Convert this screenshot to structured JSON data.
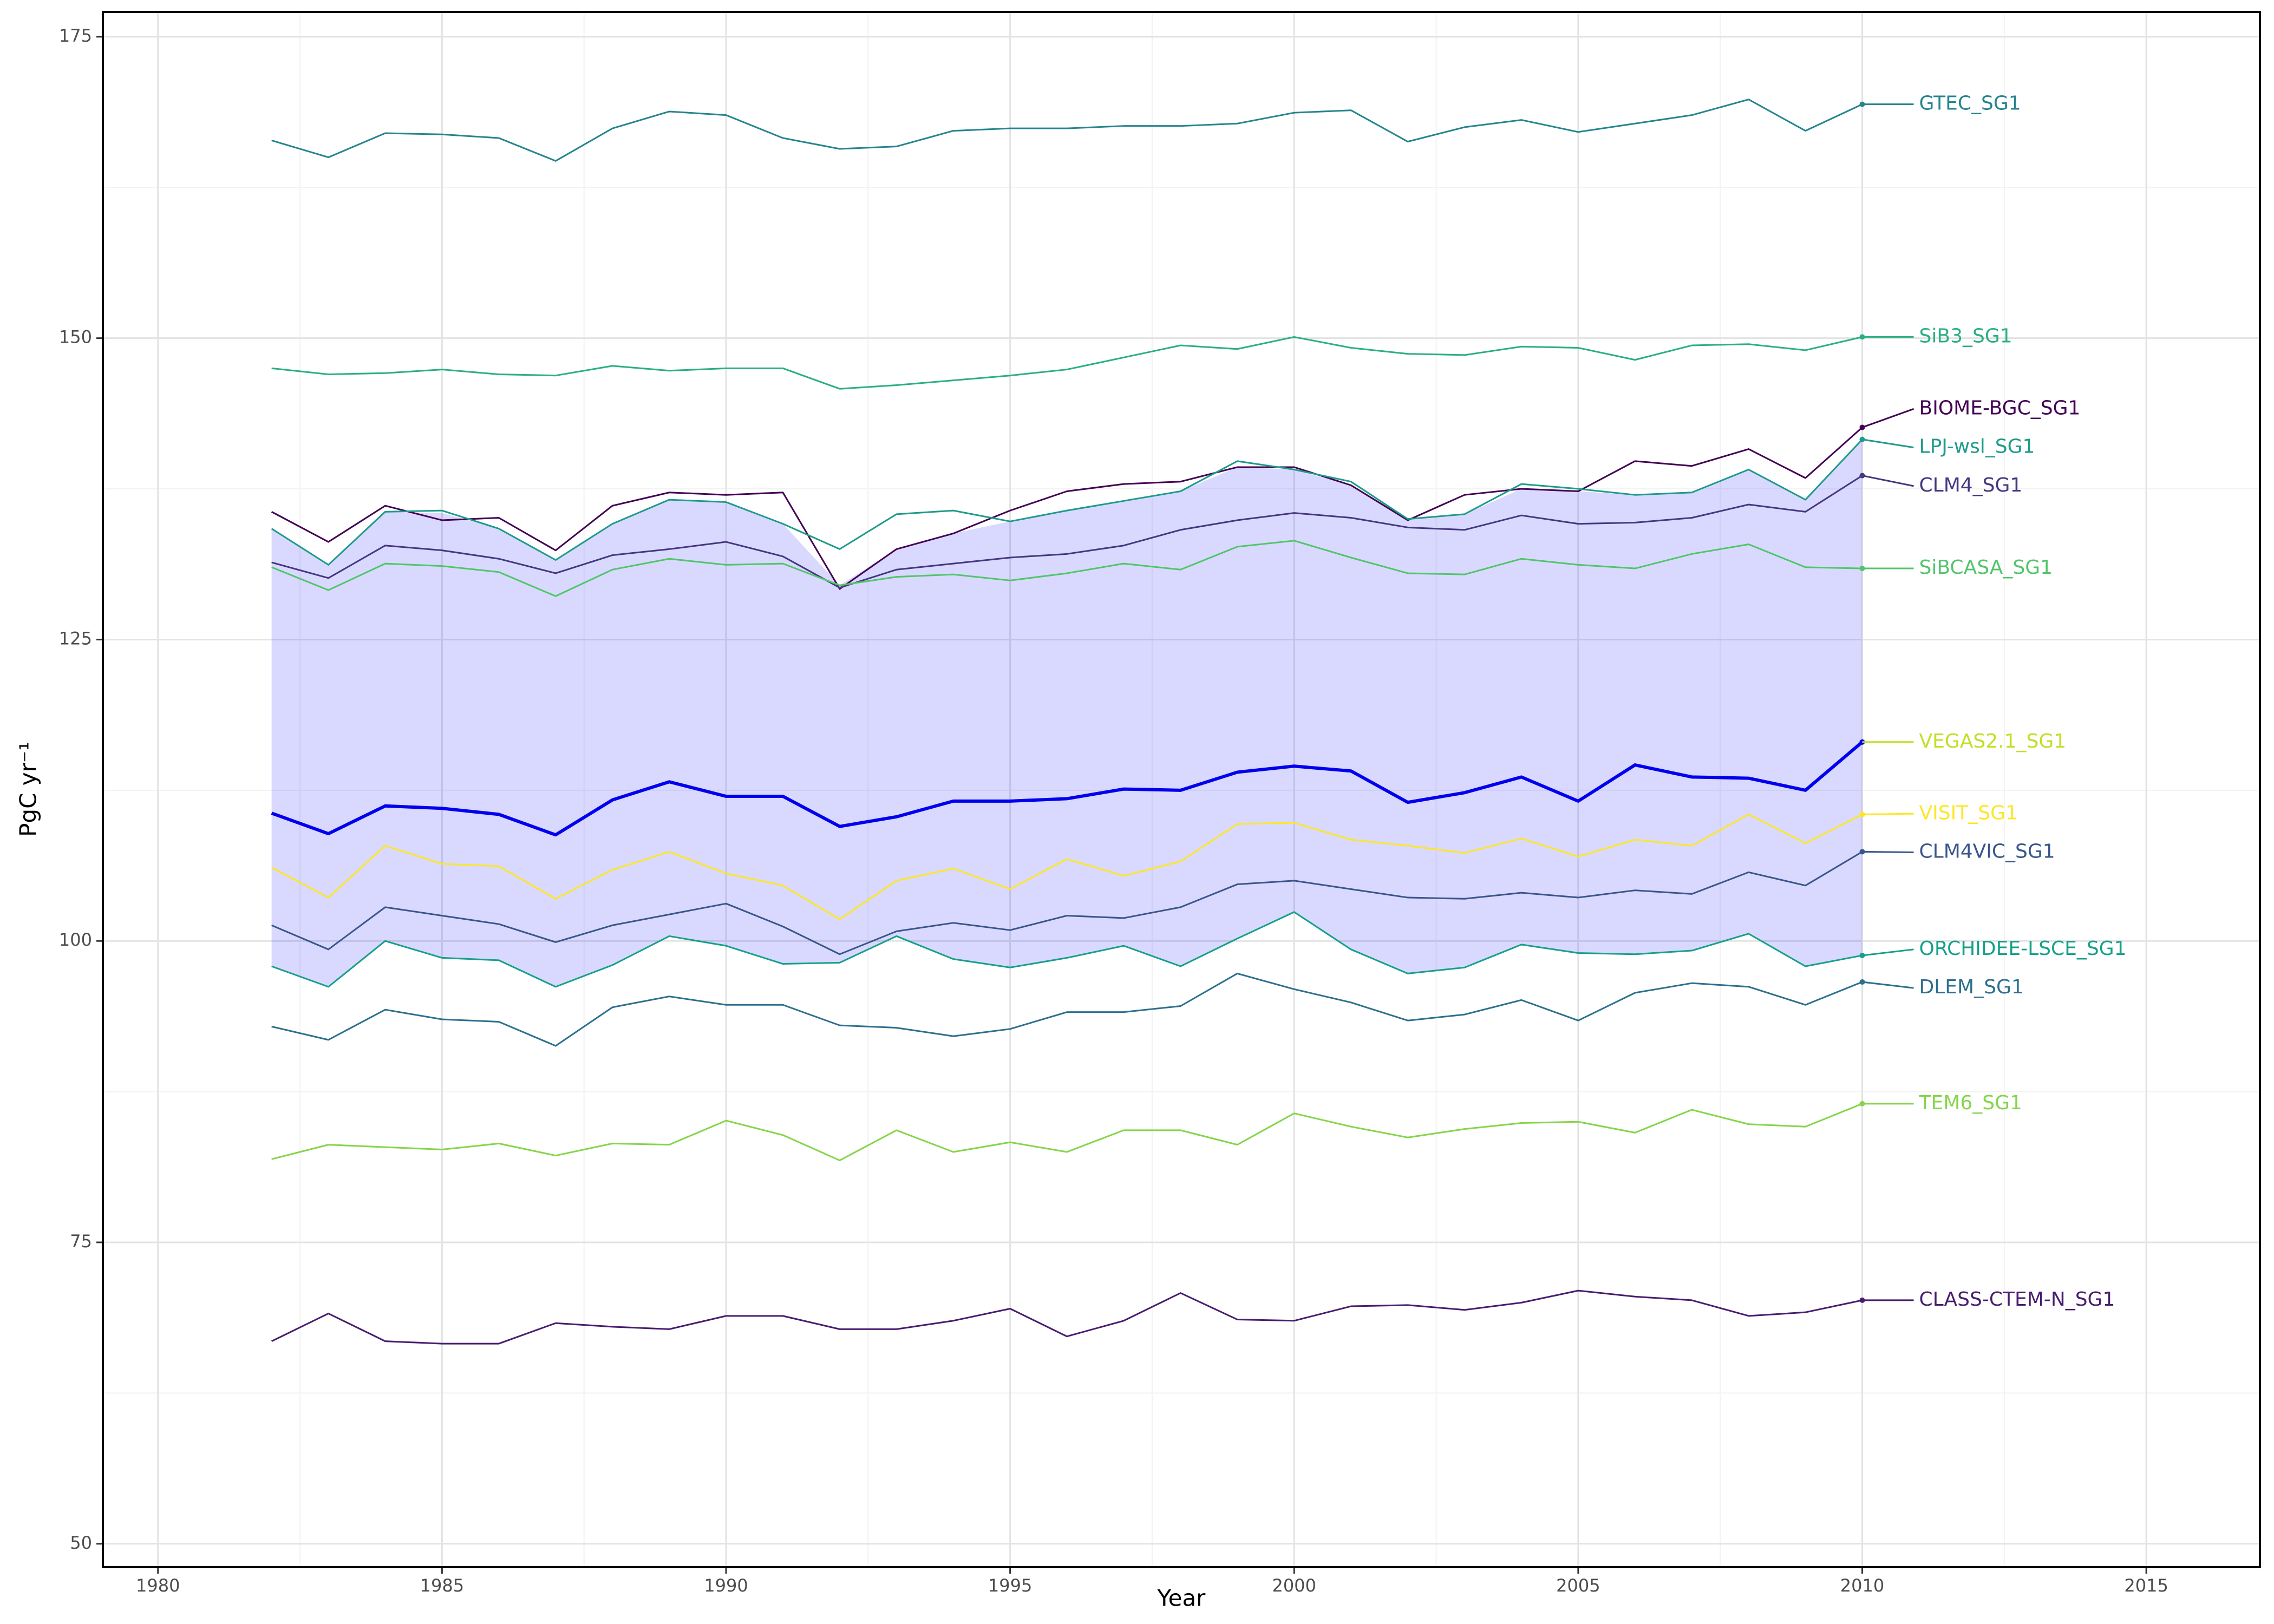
{
  "chart_data": {
    "type": "line",
    "x_label": "Year",
    "y_label": "PgC yr⁻¹",
    "xlim": [
      1979.03,
      2017
    ],
    "ylim": [
      48.06,
      177.06
    ],
    "xticks": [
      1980,
      1985,
      1990,
      1995,
      2000,
      2005,
      2010,
      2015
    ],
    "yticks": [
      50,
      75,
      100,
      125,
      150,
      175
    ],
    "xminor": [
      1982.5,
      1987.5,
      1992.5,
      1997.5,
      2002.5,
      2007.5,
      2012.5
    ],
    "yminor": [
      62.5,
      87.5,
      112.5,
      137.5,
      162.5
    ],
    "grid": true,
    "x": [
      1982,
      1983,
      1984,
      1985,
      1986,
      1987,
      1988,
      1989,
      1990,
      1991,
      1992,
      1993,
      1994,
      1995,
      1996,
      1997,
      1998,
      1999,
      2000,
      2001,
      2002,
      2003,
      2004,
      2005,
      2006,
      2007,
      2008,
      2009,
      2010
    ],
    "band": {
      "color": "#0000ff",
      "opacity": 0.15,
      "upper": [
        134.2,
        131.2,
        135.6,
        135.5,
        134.2,
        131.6,
        134.6,
        136.6,
        136.4,
        134.6,
        129.5,
        132.5,
        133.8,
        134.8,
        135.7,
        136.5,
        137.3,
        139.3,
        139.1,
        137.8,
        135.0,
        135.4,
        137.5,
        137.3,
        137.0,
        137.2,
        139.1,
        136.6,
        141.6
      ],
      "lower": [
        97.9,
        96.2,
        100.0,
        98.6,
        98.4,
        96.2,
        98.0,
        100.4,
        99.6,
        98.1,
        98.2,
        100.4,
        98.5,
        97.8,
        98.6,
        99.6,
        97.9,
        100.2,
        102.4,
        99.3,
        97.3,
        97.8,
        99.7,
        99.0,
        98.9,
        99.2,
        100.6,
        97.9,
        98.8
      ]
    },
    "series": [
      {
        "name": "GTEC_SG1",
        "color": "#25858e",
        "values": [
          166.4,
          165.0,
          167.0,
          166.9,
          166.6,
          164.7,
          167.4,
          168.8,
          168.5,
          166.6,
          165.7,
          165.9,
          167.2,
          167.4,
          167.4,
          167.6,
          167.6,
          167.8,
          168.7,
          168.9,
          166.3,
          167.5,
          168.1,
          167.1,
          167.8,
          168.5,
          169.8,
          167.2,
          169.4
        ]
      },
      {
        "name": "SiB3_SG1",
        "color": "#2ab07f",
        "values": [
          147.5,
          147.0,
          147.1,
          147.4,
          147.0,
          146.9,
          147.7,
          147.3,
          147.5,
          147.5,
          145.8,
          146.1,
          146.5,
          146.9,
          147.4,
          148.4,
          149.4,
          149.1,
          150.1,
          149.2,
          148.7,
          148.6,
          149.3,
          149.2,
          148.2,
          149.4,
          149.5,
          149.0,
          150.1
        ]
      },
      {
        "name": "BIOME-BGC_SG1",
        "color": "#440154",
        "values": [
          135.6,
          133.1,
          136.1,
          134.9,
          135.1,
          132.4,
          136.1,
          137.2,
          137.0,
          137.2,
          129.2,
          132.5,
          133.8,
          135.7,
          137.3,
          137.9,
          138.1,
          139.3,
          139.3,
          137.8,
          134.9,
          137.0,
          137.5,
          137.3,
          139.8,
          139.4,
          140.8,
          138.4,
          142.6
        ]
      },
      {
        "name": "LPJ-wsl_SG1",
        "color": "#1e9b8a",
        "values": [
          134.2,
          131.2,
          135.6,
          135.7,
          134.2,
          131.6,
          134.6,
          136.6,
          136.4,
          134.6,
          132.5,
          135.4,
          135.7,
          134.8,
          135.7,
          136.5,
          137.3,
          139.8,
          139.1,
          138.1,
          135.0,
          135.4,
          137.9,
          137.5,
          137.0,
          137.2,
          139.1,
          136.6,
          141.6
        ]
      },
      {
        "name": "CLM4_SG1",
        "color": "#453781",
        "values": [
          131.4,
          130.1,
          132.8,
          132.4,
          131.7,
          130.5,
          132.0,
          132.5,
          133.1,
          131.9,
          129.3,
          130.8,
          131.3,
          131.8,
          132.1,
          132.8,
          134.1,
          134.9,
          135.5,
          135.1,
          134.3,
          134.1,
          135.3,
          134.6,
          134.7,
          135.1,
          136.2,
          135.6,
          138.6
        ]
      },
      {
        "name": "SiBCASA_SG1",
        "color": "#51c56a",
        "values": [
          131.0,
          129.1,
          131.3,
          131.1,
          130.6,
          128.6,
          130.8,
          131.7,
          131.2,
          131.3,
          129.5,
          130.2,
          130.4,
          129.9,
          130.5,
          131.3,
          130.8,
          132.7,
          133.2,
          131.8,
          130.5,
          130.4,
          131.7,
          131.2,
          130.9,
          132.1,
          132.9,
          131.0,
          130.9
        ]
      },
      {
        "name": "VEGAS2.1_SG1",
        "color": "#0000ee",
        "label_color": "#c2df23",
        "line_width": 6,
        "values": [
          110.6,
          108.9,
          111.2,
          111.0,
          110.5,
          108.8,
          111.7,
          113.2,
          112.0,
          112.0,
          109.5,
          110.3,
          111.6,
          111.6,
          111.8,
          112.6,
          112.5,
          114.0,
          114.5,
          114.1,
          111.5,
          112.3,
          113.6,
          111.6,
          114.6,
          113.6,
          113.5,
          112.5,
          116.5
        ]
      },
      {
        "name": "VISIT_SG1",
        "color": "#fde725",
        "values": [
          106.1,
          103.6,
          107.9,
          106.4,
          106.2,
          103.5,
          105.9,
          107.4,
          105.6,
          104.6,
          101.8,
          105.0,
          106.0,
          104.3,
          106.8,
          105.4,
          106.6,
          109.7,
          109.8,
          108.4,
          107.9,
          107.3,
          108.5,
          107.0,
          108.4,
          107.9,
          110.5,
          108.1,
          110.5
        ]
      },
      {
        "name": "CLM4VIC_SG1",
        "color": "#39568c",
        "values": [
          101.3,
          99.3,
          102.8,
          102.1,
          101.4,
          99.9,
          101.3,
          102.2,
          103.1,
          101.2,
          98.9,
          100.8,
          101.5,
          100.9,
          102.1,
          101.9,
          102.8,
          104.7,
          105.0,
          104.3,
          103.6,
          103.5,
          104.0,
          103.6,
          104.2,
          103.9,
          105.7,
          104.6,
          107.4
        ]
      },
      {
        "name": "ORCHIDEE-LSCE_SG1",
        "color": "#16a08a",
        "values": [
          97.9,
          96.2,
          100.0,
          98.6,
          98.4,
          96.2,
          98.0,
          100.4,
          99.6,
          98.1,
          98.2,
          100.4,
          98.5,
          97.8,
          98.6,
          99.6,
          97.9,
          100.2,
          102.4,
          99.3,
          97.3,
          97.8,
          99.7,
          99.0,
          98.9,
          99.2,
          100.6,
          97.9,
          98.8
        ]
      },
      {
        "name": "DLEM_SG1",
        "color": "#2d708e",
        "values": [
          92.9,
          91.8,
          94.3,
          93.5,
          93.3,
          91.3,
          94.5,
          95.4,
          94.7,
          94.7,
          93.0,
          92.8,
          92.1,
          92.7,
          94.1,
          94.1,
          94.6,
          97.3,
          96.0,
          94.9,
          93.4,
          93.9,
          95.1,
          93.4,
          95.7,
          96.5,
          96.2,
          94.7,
          96.6
        ]
      },
      {
        "name": "TEM6_SG1",
        "color": "#85d54a",
        "values": [
          81.9,
          83.1,
          82.9,
          82.7,
          83.2,
          82.2,
          83.2,
          83.1,
          85.1,
          83.9,
          81.8,
          84.3,
          82.5,
          83.3,
          82.5,
          84.3,
          84.3,
          83.1,
          85.7,
          84.6,
          83.7,
          84.4,
          84.9,
          85.0,
          84.1,
          86.0,
          84.8,
          84.6,
          86.5
        ]
      },
      {
        "name": "CLASS-CTEM-N_SG1",
        "color": "#481d6f",
        "values": [
          66.8,
          69.1,
          66.8,
          66.6,
          66.6,
          68.3,
          68.0,
          67.8,
          68.9,
          68.9,
          67.8,
          67.8,
          68.5,
          69.5,
          67.2,
          68.5,
          70.8,
          68.6,
          68.5,
          69.7,
          69.8,
          69.4,
          70.0,
          71.0,
          70.5,
          70.2,
          68.9,
          69.2,
          70.2
        ]
      }
    ]
  }
}
